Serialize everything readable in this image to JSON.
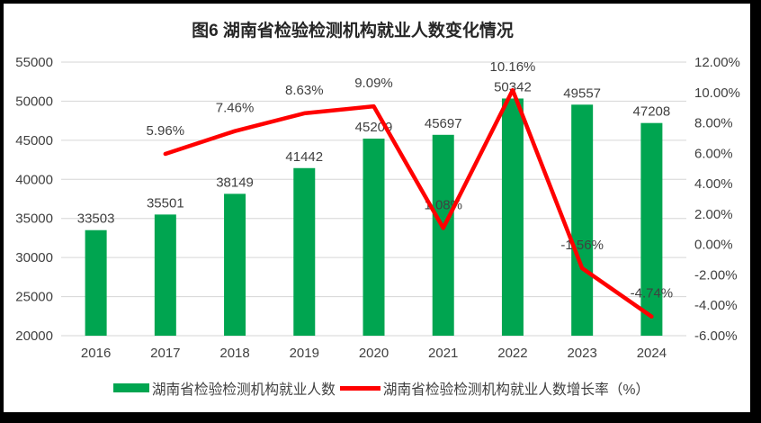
{
  "title": "图6 湖南省检验检测机构就业人数变化情况",
  "chart_data": {
    "type": "bar+line",
    "title": "图6 湖南省检验检测机构就业人数变化情况",
    "categories": [
      "2016",
      "2017",
      "2018",
      "2019",
      "2020",
      "2021",
      "2022",
      "2023",
      "2024"
    ],
    "series": [
      {
        "name": "湖南省检验检测机构就业人数",
        "type": "bar",
        "color": "#00A550",
        "values": [
          33503,
          35501,
          38149,
          41442,
          45209,
          45697,
          50342,
          49557,
          47208
        ]
      },
      {
        "name": "湖南省检验检测机构就业人数增长率（%）",
        "type": "line",
        "color": "#FF0000",
        "values": [
          null,
          5.96,
          7.46,
          8.63,
          9.09,
          1.08,
          10.16,
          -1.56,
          -4.74
        ]
      }
    ],
    "left_axis": {
      "min": 20000,
      "max": 55000,
      "step": 5000
    },
    "right_axis": {
      "min": -6,
      "max": 12,
      "step": 2,
      "suffix": "%"
    },
    "grid": true,
    "grid_color": "#D6D6D6",
    "label_color": "#404040",
    "legend_position": "bottom"
  }
}
